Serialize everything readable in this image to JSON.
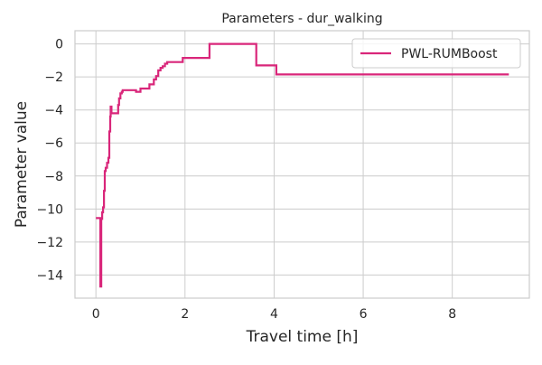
{
  "chart_data": {
    "type": "line",
    "title": "Parameters - dur_walking",
    "xlabel": "Travel time [h]",
    "ylabel": "Parameter value",
    "xlim": [
      -0.47,
      9.73
    ],
    "ylim": [
      -15.4,
      0.8
    ],
    "xticks": [
      0,
      2,
      4,
      6,
      8
    ],
    "yticks": [
      0,
      -2,
      -4,
      -6,
      -8,
      -10,
      -12,
      -14
    ],
    "xtick_labels": [
      "0",
      "2",
      "4",
      "6",
      "8"
    ],
    "ytick_labels": [
      "0",
      "−2",
      "−4",
      "−6",
      "−8",
      "−10",
      "−12",
      "−14"
    ],
    "grid": true,
    "legend_position": "top-right",
    "series": [
      {
        "name": "PWL-RUMBoost",
        "color": "#d9267a",
        "step": true,
        "x": [
          0.0,
          0.1,
          0.1,
          0.12,
          0.12,
          0.14,
          0.16,
          0.18,
          0.2,
          0.22,
          0.25,
          0.28,
          0.3,
          0.32,
          0.33,
          0.35,
          0.37,
          0.5,
          0.52,
          0.55,
          0.58,
          0.6,
          0.65,
          0.9,
          0.92,
          1.0,
          1.1,
          1.2,
          1.3,
          1.35,
          1.4,
          1.45,
          1.5,
          1.55,
          1.6,
          1.65,
          1.95,
          2.55,
          3.6,
          4.05,
          9.27
        ],
        "y": [
          -10.55,
          -10.55,
          -14.7,
          -14.7,
          -10.6,
          -10.2,
          -9.9,
          -8.9,
          -7.7,
          -7.5,
          -7.2,
          -6.9,
          -5.3,
          -4.4,
          -3.8,
          -4.2,
          -4.2,
          -3.7,
          -3.3,
          -3.0,
          -2.9,
          -2.8,
          -2.8,
          -2.9,
          -2.9,
          -2.7,
          -2.7,
          -2.45,
          -2.15,
          -1.95,
          -1.6,
          -1.45,
          -1.35,
          -1.2,
          -1.1,
          -1.1,
          -0.85,
          0.0,
          -1.3,
          -1.85,
          -1.85
        ]
      }
    ]
  }
}
